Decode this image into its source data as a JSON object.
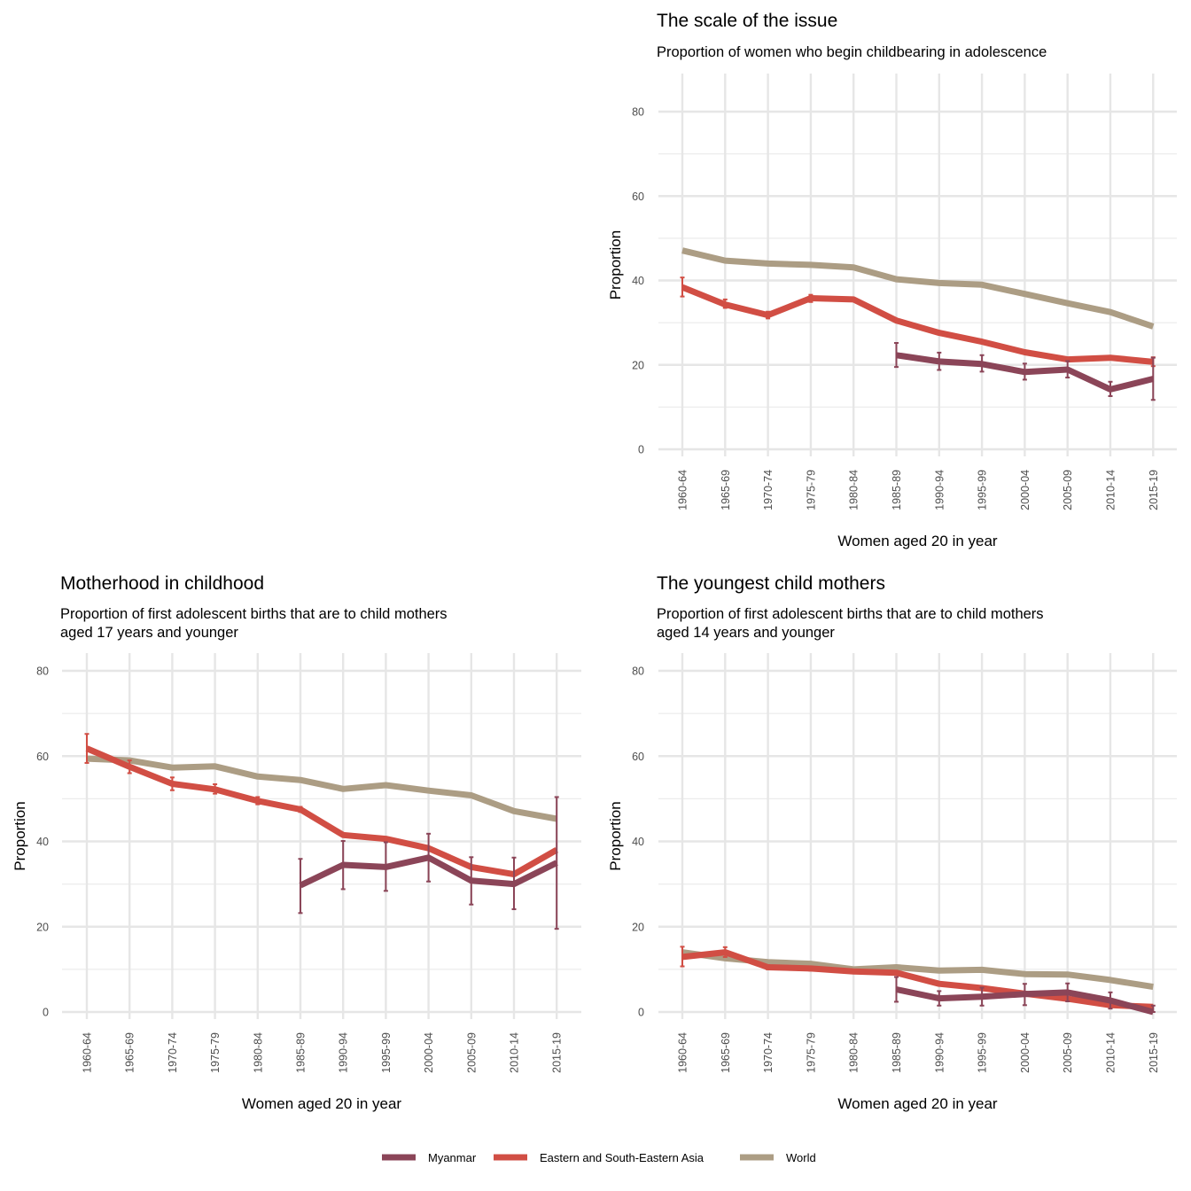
{
  "chart_data": [
    {
      "type": "line",
      "title": "The scale of the issue",
      "subtitle": [
        "Proportion of women who begin childbearing in adolescence"
      ],
      "xlabel": "Women aged 20 in year",
      "ylabel": "Proportion",
      "ylim": [
        0,
        80
      ],
      "yticks": [
        0,
        20,
        40,
        60,
        80
      ],
      "categories": [
        "1960-64",
        "1965-69",
        "1970-74",
        "1975-79",
        "1980-84",
        "1985-89",
        "1990-94",
        "1995-99",
        "2000-04",
        "2005-09",
        "2010-14",
        "2015-19"
      ],
      "series": [
        {
          "name": "Myanmar",
          "values": [
            null,
            null,
            null,
            null,
            null,
            22.3,
            20.8,
            20.2,
            18.3,
            18.9,
            14.2,
            16.7
          ],
          "lower": [
            null,
            null,
            null,
            null,
            null,
            19.5,
            18.8,
            18.4,
            16.5,
            17.0,
            12.6,
            11.7
          ],
          "upper": [
            null,
            null,
            null,
            null,
            null,
            25.2,
            22.9,
            22.3,
            20.3,
            20.9,
            16.0,
            21.7
          ]
        },
        {
          "name": "Eastern and South-Eastern Asia",
          "values": [
            38.4,
            34.3,
            31.8,
            35.8,
            35.5,
            30.5,
            27.6,
            25.5,
            23.0,
            21.3,
            21.7,
            20.7
          ],
          "lower": [
            36.2,
            33.5,
            31.0,
            34.9,
            null,
            null,
            null,
            null,
            null,
            null,
            null,
            19.7
          ],
          "upper": [
            40.7,
            35.5,
            32.6,
            36.6,
            null,
            null,
            null,
            null,
            null,
            null,
            null,
            21.8
          ]
        },
        {
          "name": "World",
          "values": [
            47.1,
            44.7,
            44.0,
            43.7,
            43.1,
            40.3,
            39.4,
            39.0,
            36.8,
            34.6,
            32.5,
            29.1
          ]
        }
      ]
    },
    {
      "type": "line",
      "title": "Motherhood in childhood",
      "subtitle": [
        "Proportion of first adolescent births that are to child mothers",
        "aged 17 years and younger"
      ],
      "xlabel": "Women aged 20 in year",
      "ylabel": "Proportion",
      "ylim": [
        0,
        80
      ],
      "yticks": [
        0,
        20,
        40,
        60,
        80
      ],
      "categories": [
        "1960-64",
        "1965-69",
        "1970-74",
        "1975-79",
        "1980-84",
        "1985-89",
        "1990-94",
        "1995-99",
        "2000-04",
        "2005-09",
        "2010-14",
        "2015-19"
      ],
      "series": [
        {
          "name": "Myanmar",
          "values": [
            null,
            null,
            null,
            null,
            null,
            29.7,
            34.5,
            34.0,
            36.2,
            30.8,
            30.0,
            35.0
          ],
          "lower": [
            null,
            null,
            null,
            null,
            null,
            23.2,
            28.8,
            28.4,
            30.6,
            25.2,
            24.1,
            19.5
          ],
          "upper": [
            null,
            null,
            null,
            null,
            null,
            35.9,
            40.1,
            39.8,
            41.8,
            36.3,
            36.2,
            50.4
          ]
        },
        {
          "name": "Eastern and South-Eastern Asia",
          "values": [
            61.8,
            57.5,
            53.5,
            52.2,
            49.5,
            47.5,
            41.5,
            40.6,
            38.4,
            34.0,
            32.3,
            38.0
          ],
          "lower": [
            58.4,
            56.0,
            52.0,
            51.2,
            48.7,
            46.9,
            null,
            null,
            null,
            null,
            null,
            null
          ],
          "upper": [
            65.2,
            59.0,
            55.0,
            53.4,
            50.4,
            48.1,
            null,
            null,
            null,
            null,
            null,
            null
          ]
        },
        {
          "name": "World",
          "values": [
            59.4,
            59.0,
            57.3,
            57.6,
            55.2,
            54.4,
            52.3,
            53.2,
            51.9,
            50.8,
            47.1,
            45.3
          ]
        }
      ]
    },
    {
      "type": "line",
      "title": "The youngest child mothers",
      "subtitle": [
        "Proportion of first adolescent births that are to child mothers",
        "aged 14 years and younger"
      ],
      "xlabel": "Women aged 20 in year",
      "ylabel": "Proportion",
      "ylim": [
        0,
        80
      ],
      "yticks": [
        0,
        20,
        40,
        60,
        80
      ],
      "categories": [
        "1960-64",
        "1965-69",
        "1970-74",
        "1975-79",
        "1980-84",
        "1985-89",
        "1990-94",
        "1995-99",
        "2000-04",
        "2005-09",
        "2010-14",
        "2015-19"
      ],
      "series": [
        {
          "name": "Myanmar",
          "values": [
            null,
            null,
            null,
            null,
            null,
            5.3,
            3.2,
            3.6,
            4.2,
            4.6,
            2.7,
            0.0
          ],
          "lower": [
            null,
            null,
            null,
            null,
            null,
            2.4,
            1.5,
            1.5,
            1.6,
            2.5,
            0.8,
            0.0
          ],
          "upper": [
            null,
            null,
            null,
            null,
            null,
            8.2,
            4.9,
            5.7,
            6.6,
            6.7,
            4.6,
            1.5
          ]
        },
        {
          "name": "Eastern and South-Eastern Asia",
          "values": [
            12.9,
            14.0,
            10.5,
            10.2,
            9.5,
            9.2,
            6.6,
            5.6,
            4.3,
            3.1,
            1.6,
            1.2
          ],
          "lower": [
            10.7,
            12.9,
            10.0,
            9.7,
            null,
            null,
            null,
            null,
            null,
            null,
            null,
            null
          ],
          "upper": [
            15.3,
            15.2,
            11.0,
            10.7,
            null,
            null,
            null,
            null,
            null,
            null,
            null,
            null
          ]
        },
        {
          "name": "World",
          "values": [
            14.0,
            12.6,
            11.7,
            11.3,
            10.0,
            10.5,
            9.7,
            9.9,
            8.9,
            8.8,
            7.5,
            5.9
          ]
        }
      ]
    }
  ],
  "legend": [
    {
      "label": "Myanmar",
      "color": "#8B4558"
    },
    {
      "label": "Eastern and South-Eastern Asia",
      "color": "#D14E44"
    },
    {
      "label": "World",
      "color": "#AC9D84"
    }
  ],
  "colors": {
    "Myanmar": "#8B4558",
    "Eastern and South-Eastern Asia": "#D14E44",
    "World": "#AC9D84"
  }
}
